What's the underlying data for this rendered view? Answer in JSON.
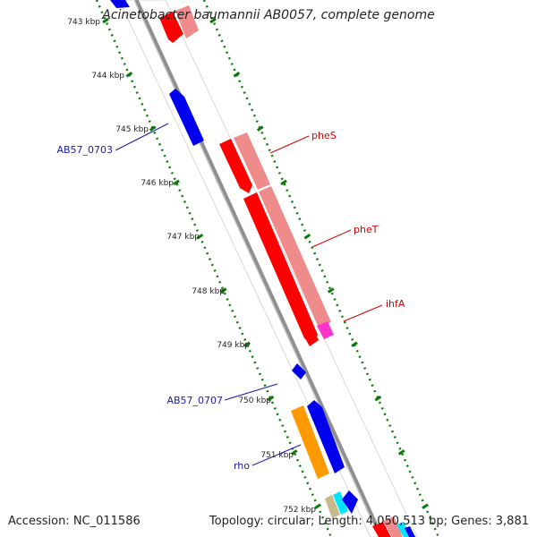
{
  "title": "Acinetobacter baumannii AB0057, complete genome",
  "accession": "Accession: NC_011586",
  "topology": "Topology: circular; Length: 4,050,513 bp; Genes: 3,881",
  "scale_labels": [
    "743 kbp",
    "744 kbp",
    "745 kbp",
    "746 kbp",
    "747 kbp",
    "748 kbp",
    "749 kbp",
    "750 kbp",
    "751 kbp",
    "752 kbp"
  ],
  "gene_labels": [
    {
      "text": "pheS",
      "strand": "forward",
      "color": "#d40000"
    },
    {
      "text": "pheT",
      "strand": "forward",
      "color": "#d40000"
    },
    {
      "text": "ihfA",
      "strand": "forward",
      "color": "#d40000"
    },
    {
      "text": "AB57_0703",
      "strand": "reverse",
      "color": "#1a1aa6"
    },
    {
      "text": "AB57_0707",
      "strand": "reverse",
      "color": "#1a1aa6"
    },
    {
      "text": "rho",
      "strand": "reverse",
      "color": "#1a1aa6"
    }
  ],
  "colors": {
    "backbone": "#8f8f8f",
    "forward_gene": "#ff0000",
    "forward_gene_light": "#f08b8b",
    "reverse_gene": "#0000ee",
    "rho_gene": "#ff9900",
    "tick": "#0a7a0a",
    "cyan_gene": "#00e5ff",
    "tan_gene": "#c8b98a",
    "magenta_gene": "#ff33cc"
  }
}
